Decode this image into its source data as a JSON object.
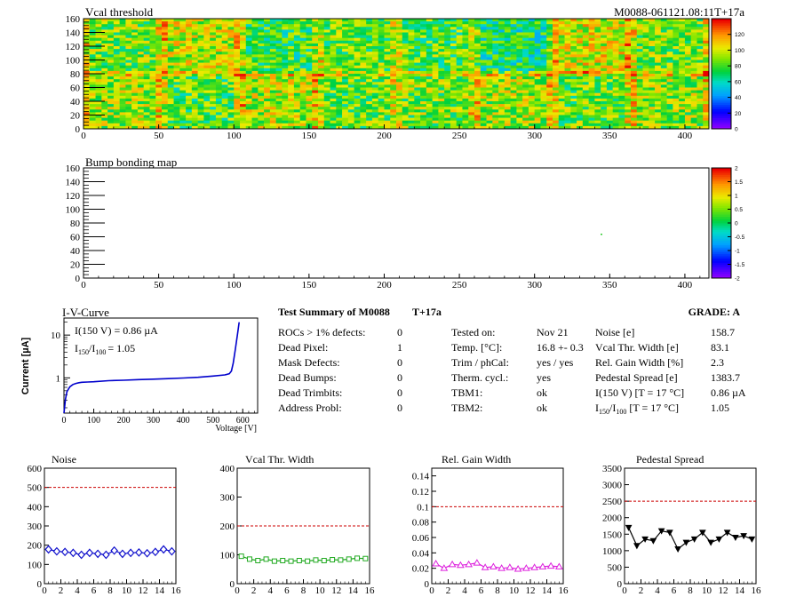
{
  "threshold_map": {
    "title": "Vcal threshold",
    "module_tag": "M0088-061121.08:11T+17a",
    "x_ticks": [
      "0",
      "50",
      "100",
      "150",
      "200",
      "250",
      "300",
      "350",
      "400"
    ],
    "y_ticks": [
      "0",
      "20",
      "40",
      "60",
      "80",
      "100",
      "120",
      "140",
      "160"
    ],
    "z_ticks": [
      "0",
      "20",
      "40",
      "60",
      "80",
      "100",
      "120"
    ],
    "xlim": [
      0,
      416
    ],
    "ylim": [
      0,
      160
    ],
    "zlim": [
      0,
      140
    ]
  },
  "bump_map": {
    "title": "Bump bonding map",
    "x_ticks": [
      "0",
      "50",
      "100",
      "150",
      "200",
      "250",
      "300",
      "350",
      "400"
    ],
    "y_ticks": [
      "0",
      "20",
      "40",
      "60",
      "80",
      "100",
      "120",
      "140",
      "160"
    ],
    "z_ticks": [
      "-2",
      "-1.5",
      "-1",
      "-0.5",
      "0",
      "0.5",
      "1",
      "1.5",
      "2"
    ],
    "xlim": [
      0,
      416
    ],
    "ylim": [
      0,
      160
    ],
    "zlim": [
      -2,
      2
    ]
  },
  "iv_curve": {
    "title": "I-V-Curve",
    "ylabel": "Current [µA]",
    "xlabel": "Voltage [V]",
    "i150_label": "I(150 V) = 0.86 µA",
    "ratio_label": "I",
    "ratio_sub1": "150",
    "ratio_sep": "/I",
    "ratio_sub2": "100",
    "ratio_value": "=  1.05",
    "x_ticks": [
      "0",
      "100",
      "200",
      "300",
      "400",
      "500",
      "600"
    ],
    "y_ticks": [
      "1",
      "10"
    ],
    "xlim": [
      0,
      650
    ],
    "ylim": [
      0.15,
      25
    ],
    "log_y": true,
    "voltage": [
      0,
      5,
      10,
      20,
      30,
      40,
      50,
      60,
      80,
      100,
      150,
      200,
      250,
      300,
      350,
      400,
      450,
      500,
      540,
      555,
      562,
      568,
      575,
      582,
      588
    ],
    "current": [
      0.15,
      0.32,
      0.48,
      0.62,
      0.7,
      0.74,
      0.77,
      0.79,
      0.8,
      0.81,
      0.86,
      0.88,
      0.91,
      0.93,
      0.96,
      0.99,
      1.03,
      1.1,
      1.17,
      1.25,
      1.45,
      2.2,
      4.5,
      10.0,
      20.0
    ]
  },
  "summary": {
    "title": "Test Summary of M0088",
    "tag": "T+17a",
    "grade": "GRADE:  A",
    "left": [
      {
        "label": "ROCs > 1% defects:",
        "value": "0"
      },
      {
        "label": "Dead Pixel:",
        "value": "1"
      },
      {
        "label": "Mask Defects:",
        "value": "0"
      },
      {
        "label": "Dead Bumps:",
        "value": "0"
      },
      {
        "label": "Dead Trimbits:",
        "value": "0"
      },
      {
        "label": "Address Probl:",
        "value": "0"
      }
    ],
    "middle": [
      {
        "label": "Tested on:",
        "value": "Nov 21"
      },
      {
        "label": "Temp. [°C]:",
        "value": "16.8 +- 0.3"
      },
      {
        "label": "Trim / phCal:",
        "value": "yes / yes"
      },
      {
        "label": "Therm. cycl.:",
        "value": "yes"
      },
      {
        "label": "TBM1:",
        "value": "ok"
      },
      {
        "label": "TBM2:",
        "value": "ok"
      }
    ],
    "right": [
      {
        "label": "Noise [e]",
        "value": "158.7"
      },
      {
        "label": "Vcal Thr. Width [e]",
        "value": "83.1"
      },
      {
        "label": "Rel. Gain Width [%]",
        "value": "2.3"
      },
      {
        "label": "Pedestal Spread [e]",
        "value": "1383.7"
      },
      {
        "label": "I(150 V) [T = 17 °C]",
        "value": "0.86 µA"
      },
      {
        "label": "I",
        "sub1": "150",
        "sep": "/I",
        "sub2": "100",
        "rest": "  [T = 17 °C]",
        "value": "1.05"
      }
    ]
  },
  "chart_data": [
    {
      "type": "line",
      "title": "Noise",
      "x": [
        0,
        1,
        2,
        3,
        4,
        5,
        6,
        7,
        8,
        9,
        10,
        11,
        12,
        13,
        14,
        15
      ],
      "values": [
        178,
        168,
        165,
        160,
        150,
        160,
        155,
        150,
        172,
        155,
        160,
        162,
        158,
        165,
        178,
        168
      ],
      "ylim": [
        0,
        600
      ],
      "xlim": [
        0,
        16
      ],
      "y_ticks": [
        "0",
        "100",
        "200",
        "300",
        "400",
        "500",
        "600"
      ],
      "x_ticks": [
        "0",
        "2",
        "4",
        "6",
        "8",
        "10",
        "12",
        "14",
        "16"
      ],
      "threshold": 500,
      "color": "#1010cc",
      "marker": "diamond"
    },
    {
      "type": "line",
      "title": "Vcal Thr. Width",
      "x": [
        0,
        1,
        2,
        3,
        4,
        5,
        6,
        7,
        8,
        9,
        10,
        11,
        12,
        13,
        14,
        15
      ],
      "values": [
        95,
        85,
        80,
        85,
        78,
        80,
        78,
        80,
        78,
        82,
        80,
        83,
        82,
        85,
        88,
        87
      ],
      "ylim": [
        0,
        400
      ],
      "xlim": [
        0,
        16
      ],
      "y_ticks": [
        "0",
        "100",
        "200",
        "300",
        "400"
      ],
      "x_ticks": [
        "0",
        "2",
        "4",
        "6",
        "8",
        "10",
        "12",
        "14",
        "16"
      ],
      "threshold": 200,
      "color": "#22aa22",
      "marker": "square"
    },
    {
      "type": "line",
      "title": "Rel. Gain Width",
      "x": [
        0,
        1,
        2,
        3,
        4,
        5,
        6,
        7,
        8,
        9,
        10,
        11,
        12,
        13,
        14,
        15
      ],
      "values": [
        0.026,
        0.02,
        0.025,
        0.024,
        0.025,
        0.027,
        0.021,
        0.022,
        0.02,
        0.021,
        0.019,
        0.02,
        0.021,
        0.022,
        0.023,
        0.022
      ],
      "ylim": [
        0,
        0.15
      ],
      "xlim": [
        0,
        16
      ],
      "y_ticks": [
        "0",
        "0.02",
        "0.04",
        "0.06",
        "0.08",
        "0.1",
        "0.12",
        "0.14"
      ],
      "x_ticks": [
        "0",
        "2",
        "4",
        "6",
        "8",
        "10",
        "12",
        "14",
        "16"
      ],
      "threshold": 0.1,
      "color": "#dd22dd",
      "marker": "triangle"
    },
    {
      "type": "line",
      "title": "Pedestal Spread",
      "x": [
        0,
        1,
        2,
        3,
        4,
        5,
        6,
        7,
        8,
        9,
        10,
        11,
        12,
        13,
        14,
        15
      ],
      "values": [
        1700,
        1150,
        1350,
        1300,
        1600,
        1550,
        1050,
        1250,
        1350,
        1550,
        1250,
        1350,
        1550,
        1400,
        1450,
        1350
      ],
      "ylim": [
        0,
        3500
      ],
      "xlim": [
        0,
        16
      ],
      "y_ticks": [
        "0",
        "500",
        "1000",
        "1500",
        "2000",
        "2500",
        "3000",
        "3500"
      ],
      "x_ticks": [
        "0",
        "2",
        "4",
        "6",
        "8",
        "10",
        "12",
        "14",
        "16"
      ],
      "threshold": 2500,
      "color": "#000000",
      "marker": "triangle-down"
    }
  ]
}
